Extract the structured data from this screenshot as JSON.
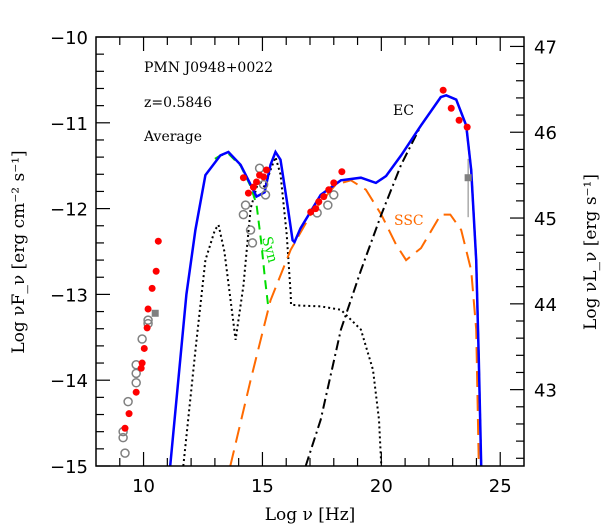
{
  "chart_data": {
    "type": "scatter",
    "xlabel": "Log ν  [Hz]",
    "ylabel": "Log νF_ν  [erg cm⁻² s⁻¹]",
    "ylabel_right": "Log νL_ν  [erg s⁻¹]",
    "xlim": [
      8,
      26
    ],
    "ylim": [
      -15,
      -10
    ],
    "ylim_right": [
      42.11,
      47.11
    ],
    "x_ticks": [
      "10",
      "15",
      "20",
      "25"
    ],
    "x_tick_values": [
      10,
      15,
      20,
      25
    ],
    "y_ticks": [
      "−15",
      "−14",
      "−13",
      "−12",
      "−11",
      "−10"
    ],
    "y_tick_values": [
      -15,
      -14,
      -13,
      -12,
      -11,
      -10
    ],
    "y_right_ticks": [
      "43",
      "44",
      "45",
      "46",
      "47"
    ],
    "y_right_tick_values": [
      43,
      44,
      45,
      46,
      47
    ],
    "grid": false,
    "annotations": {
      "source": "PMN J0948+0022",
      "redshift": "z=0.5846",
      "state": "Average",
      "ec": "EC",
      "ssc": "SSC",
      "syn": "Syn"
    },
    "colors": {
      "total": "#0000ff",
      "syn": "#00dd00",
      "ssc": "#ff6a00",
      "ec": "#000000",
      "thermal": "#000000",
      "data_red": "#ff0000",
      "data_gray": "#808080"
    },
    "series": [
      {
        "key": "total",
        "style": "solid",
        "x": [
          11.12,
          11.46,
          11.8,
          12.18,
          12.6,
          13.23,
          13.57,
          14.08,
          14.5,
          14.75,
          15.09,
          15.34,
          15.55,
          15.76,
          16.02,
          16.27,
          16.35,
          16.6,
          17.45,
          18.3,
          19.14,
          19.77,
          20.2,
          20.83,
          21.67,
          22.5,
          22.73,
          23.15,
          23.57,
          23.78,
          23.99,
          24.1,
          24.2
        ],
        "y": [
          -15,
          -14,
          -13,
          -12.25,
          -11.61,
          -11.38,
          -11.34,
          -11.49,
          -11.72,
          -11.86,
          -11.81,
          -11.49,
          -11.34,
          -11.43,
          -11.9,
          -12.37,
          -12.39,
          -12.23,
          -11.84,
          -11.67,
          -11.64,
          -11.7,
          -11.62,
          -11.38,
          -11.03,
          -10.7,
          -10.68,
          -10.73,
          -11.03,
          -11.55,
          -12.6,
          -13.76,
          -15
        ]
      },
      {
        "key": "syn",
        "style": "dashed",
        "x": [
          13.0,
          13.23,
          13.57,
          14.08,
          14.5,
          14.75,
          14.95,
          15.1,
          15.26
        ],
        "y": [
          -11.42,
          -11.38,
          -11.36,
          -11.5,
          -11.74,
          -11.95,
          -12.4,
          -12.8,
          -13.18
        ]
      },
      {
        "key": "thermal",
        "style": "dotted",
        "x": [
          11.67,
          12.2,
          12.6,
          13.0,
          13.15,
          13.4,
          13.87,
          14.2,
          14.5,
          14.84,
          15.1,
          15.34,
          15.55,
          15.76,
          16.02,
          16.19,
          16.2,
          16.6,
          17.45,
          18.3,
          19.14,
          19.65,
          19.9,
          20.0
        ],
        "y": [
          -15,
          -13.6,
          -12.6,
          -12.25,
          -12.19,
          -12.5,
          -13.53,
          -12.9,
          -12.0,
          -11.67,
          -11.75,
          -11.55,
          -11.4,
          -11.6,
          -12.3,
          -13.0,
          -13.12,
          -13.13,
          -13.14,
          -13.18,
          -13.41,
          -13.88,
          -14.46,
          -15
        ]
      },
      {
        "key": "ssc",
        "style": "longdash",
        "x": [
          13.65,
          14.5,
          15.34,
          16.19,
          17.03,
          18.08,
          18.72,
          19.35,
          20.0,
          20.62,
          21.04,
          21.67,
          22.5,
          22.9,
          23.36,
          23.78,
          23.99,
          24.1
        ],
        "y": [
          -15,
          -14,
          -13.07,
          -12.48,
          -12.07,
          -11.72,
          -11.67,
          -11.78,
          -12.07,
          -12.42,
          -12.6,
          -12.46,
          -12.07,
          -12.07,
          -12.25,
          -12.72,
          -13.41,
          -15
        ]
      },
      {
        "key": "ec",
        "style": "dashdot",
        "x": [
          16.82,
          17.45,
          18.3,
          19.14,
          20.0,
          20.83,
          21.67,
          22.5,
          22.73,
          23.15,
          23.57,
          23.78,
          23.99,
          24.1,
          24.2
        ],
        "y": [
          -15,
          -14.46,
          -13.41,
          -12.72,
          -12.07,
          -11.49,
          -11.03,
          -10.7,
          -10.68,
          -10.73,
          -11.03,
          -11.55,
          -12.6,
          -13.76,
          -15
        ]
      }
    ],
    "points_red": {
      "x": [
        10.62,
        10.53,
        10.36,
        10.19,
        10.15,
        10.03,
        9.94,
        9.9,
        9.69,
        9.39,
        9.22,
        14.2,
        14.41,
        14.62,
        14.75,
        14.88,
        15.05,
        15.17,
        17.03,
        17.24,
        17.37,
        17.58,
        17.79,
        18.0,
        18.34,
        22.6,
        22.94,
        23.27,
        23.61
      ],
      "y": [
        -12.38,
        -12.73,
        -12.93,
        -13.17,
        -13.39,
        -13.63,
        -13.8,
        -13.86,
        -14.14,
        -14.39,
        -14.56,
        -11.64,
        -11.82,
        -11.75,
        -11.69,
        -11.61,
        -11.63,
        -11.55,
        -12.04,
        -12.0,
        -11.92,
        -11.86,
        -11.78,
        -11.7,
        -11.57,
        -10.62,
        -10.83,
        -10.97,
        -11.05
      ]
    },
    "points_gray": {
      "x": [
        9.22,
        9.14,
        9.14,
        9.35,
        9.69,
        9.69,
        9.69,
        9.94,
        10.19,
        10.19,
        14.2,
        14.29,
        14.58,
        14.5,
        14.88,
        15.05,
        15.13,
        17.3,
        17.75,
        18.0
      ],
      "y": [
        -14.85,
        -14.67,
        -14.6,
        -14.25,
        -14.03,
        -13.92,
        -13.82,
        -13.52,
        -13.3,
        -13.34,
        -12.07,
        -11.96,
        -12.4,
        -12.25,
        -11.53,
        -11.72,
        -11.84,
        -12.05,
        -11.96,
        -11.84
      ]
    },
    "points_gray_square": {
      "x": [
        10.49,
        23.65
      ],
      "y": [
        -13.22,
        -11.64
      ],
      "yerr_low": [
        0,
        -12.1
      ],
      "yerr_high": [
        0,
        -11.42
      ]
    }
  }
}
